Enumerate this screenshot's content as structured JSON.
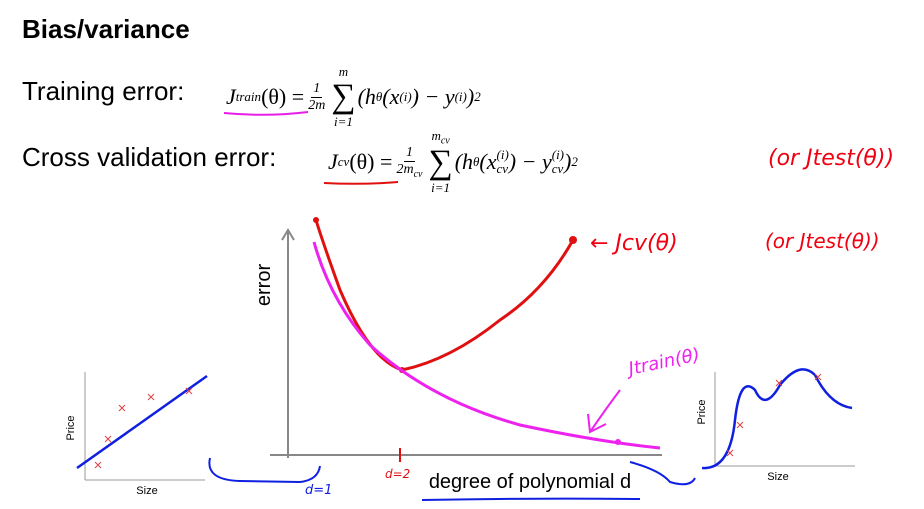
{
  "header": {
    "title": "Bias/variance"
  },
  "training": {
    "label": "Training error:",
    "lhs": "J",
    "lhs_sub": "train",
    "lhs_arg": "(θ)",
    "equals": "=",
    "frac_num": "1",
    "frac_den": "2m",
    "sum_top": "m",
    "sum_sym": "∑",
    "sum_bottom": "i=1",
    "body": [
      "(h",
      "θ",
      "(x",
      "(i)",
      ") − y",
      "(i)",
      ")",
      "2"
    ]
  },
  "cross_validation": {
    "label": "Cross validation error:",
    "lhs": "J",
    "lhs_sub": "cv",
    "lhs_arg": "(θ)",
    "equals": "=",
    "frac_num": "1",
    "frac_den": "2m",
    "frac_den_sub": "cv",
    "sum_top": "m",
    "sum_top_sub": "cv",
    "sum_sym": "∑",
    "sum_bottom": "i=1",
    "body": [
      "(h",
      "θ",
      "(x",
      "(i)",
      "cv",
      ") − y",
      "(i)",
      "cv",
      ")",
      "2"
    ],
    "note": "(or Jtest(θ))"
  },
  "plot": {
    "y_label": "error",
    "x_label": "degree of polynomial d",
    "cv_note": "← Jcv(θ)",
    "cv_note_alt": "(or Jtest(θ))",
    "train_note": "Jtrain(θ)",
    "d1": "d=1",
    "d2": "d=2"
  },
  "left_plot": {
    "y_label": "Price",
    "x_label": "Size"
  },
  "right_plot": {
    "y_label": "Price",
    "x_label": "Size"
  }
}
